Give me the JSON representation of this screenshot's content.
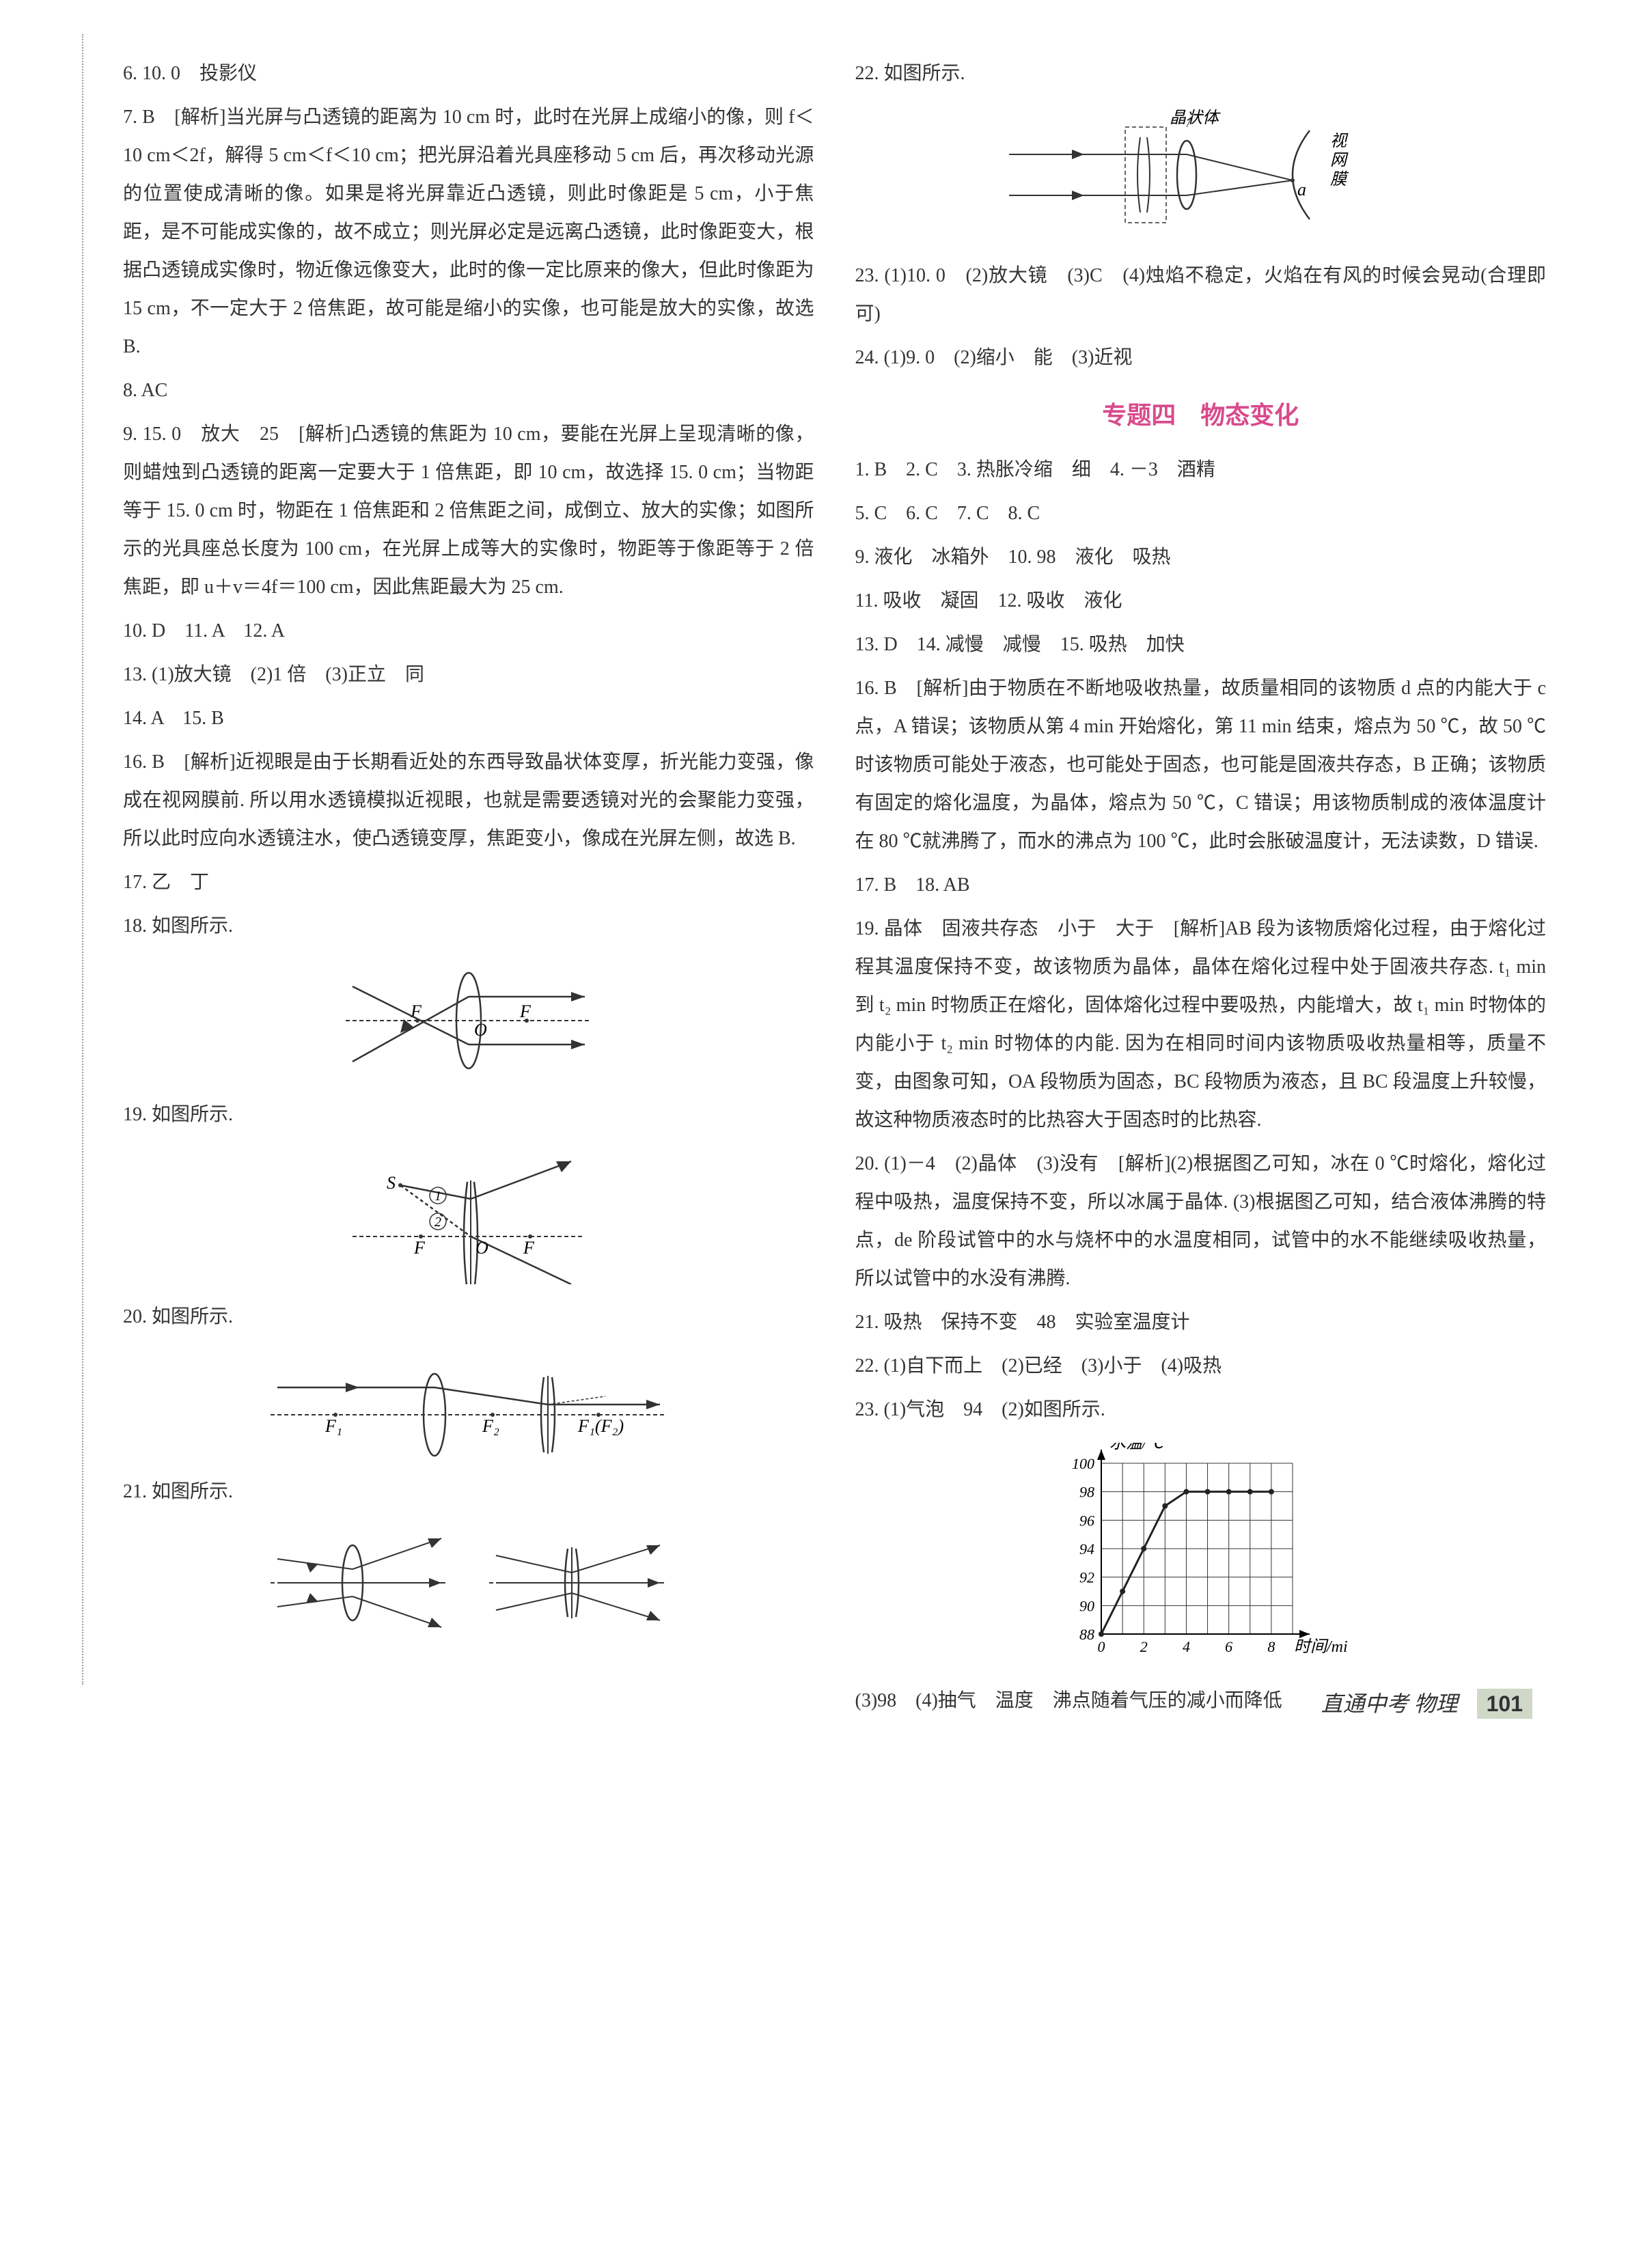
{
  "left": {
    "q06": "6. 10. 0　投影仪",
    "q07": "7. B　[解析]当光屏与凸透镜的距离为 10 cm 时，此时在光屏上成缩小的像，则 f＜10 cm＜2f，解得 5 cm＜f＜10 cm；把光屏沿着光具座移动 5 cm 后，再次移动光源的位置使成清晰的像。如果是将光屏靠近凸透镜，则此时像距是 5 cm，小于焦距，是不可能成实像的，故不成立；则光屏必定是远离凸透镜，此时像距变大，根据凸透镜成实像时，物近像远像变大，此时的像一定比原来的像大，但此时像距为 15 cm，不一定大于 2 倍焦距，故可能是缩小的实像，也可能是放大的实像，故选 B.",
    "q08": "8. AC",
    "q09": "9. 15. 0　放大　25　[解析]凸透镜的焦距为 10 cm，要能在光屏上呈现清晰的像，则蜡烛到凸透镜的距离一定要大于 1 倍焦距，即 10 cm，故选择 15. 0 cm；当物距等于 15. 0 cm 时，物距在 1 倍焦距和 2 倍焦距之间，成倒立、放大的实像；如图所示的光具座总长度为 100 cm，在光屏上成等大的实像时，物距等于像距等于 2 倍焦距，即 u＋v＝4f＝100 cm，因此焦距最大为 25 cm.",
    "q10": "10. D　11. A　12. A",
    "q13": "13. (1)放大镜　(2)1 倍　(3)正立　同",
    "q14": "14. A　15. B",
    "q16": "16. B　[解析]近视眼是由于长期看近处的东西导致晶状体变厚，折光能力变强，像成在视网膜前. 所以用水透镜模拟近视眼，也就是需要透镜对光的会聚能力变强，所以此时应向水透镜注水，使凸透镜变厚，焦距变小，像成在光屏左侧，故选 B.",
    "q17": "17. 乙　丁",
    "q18": "18. 如图所示.",
    "q19": "19. 如图所示.",
    "q20": "20. 如图所示.",
    "q21": "21. 如图所示."
  },
  "right": {
    "q22": "22. 如图所示.",
    "q22_labels": {
      "lens": "晶状体",
      "retina": "视\n网\n膜",
      "point": "a"
    },
    "q23": "23. (1)10. 0　(2)放大镜　(3)C　(4)烛焰不稳定，火焰在有风的时候会晃动(合理即可)",
    "q24": "24. (1)9. 0　(2)缩小　能　(3)近视",
    "section_title": "专题四　物态变化",
    "r01": "1. B　2. C　3. 热胀冷缩　细　4. －3　酒精",
    "r05": "5. C　6. C　7. C　8. C",
    "r09": "9. 液化　冰箱外　10. 98　液化　吸热",
    "r11": "11. 吸收　凝固　12. 吸收　液化",
    "r13": "13. D　14. 减慢　减慢　15. 吸热　加快",
    "r16": "16. B　[解析]由于物质在不断地吸收热量，故质量相同的该物质 d 点的内能大于 c 点，A 错误；该物质从第 4 min 开始熔化，第 11 min 结束，熔点为 50 ℃，故 50 ℃时该物质可能处于液态，也可能处于固态，也可能是固液共存态，B 正确；该物质有固定的熔化温度，为晶体，熔点为 50 ℃，C 错误；用该物质制成的液体温度计在 80 ℃就沸腾了，而水的沸点为 100 ℃，此时会胀破温度计，无法读数，D 错误.",
    "r17": "17. B　18. AB",
    "r19": "19. 晶体　固液共存态　小于　大于　[解析]AB 段为该物质熔化过程，由于熔化过程其温度保持不变，故该物质为晶体，晶体在熔化过程中处于固液共存态. t₁ min 到 t₂ min 时物质正在熔化，固体熔化过程中要吸热，内能增大，故 t₁ min 时物体的内能小于 t₂ min 时物体的内能. 因为在相同时间内该物质吸收热量相等，质量不变，由图象可知，OA 段物质为固态，BC 段物质为液态，且 BC 段温度上升较慢，故这种物质液态时的比热容大于固态时的比热容.",
    "r20": "20. (1)－4　(2)晶体　(3)没有　[解析](2)根据图乙可知，冰在 0 ℃时熔化，熔化过程中吸热，温度保持不变，所以冰属于晶体. (3)根据图乙可知，结合液体沸腾的特点，de 阶段试管中的水与烧杯中的水温度相同，试管中的水不能继续吸收热量，所以试管中的水没有沸腾.",
    "r21": "21. 吸热　保持不变　48　实验室温度计",
    "r22": "22. (1)自下而上　(2)已经　(3)小于　(4)吸热",
    "r23a": "23. (1)气泡　94　(2)如图所示.",
    "r23b": "(3)98　(4)抽气　温度　沸点随着气压的减小而降低"
  },
  "footer": {
    "book": "直通中考",
    "subject": "物理",
    "page": "101"
  },
  "chart": {
    "type": "line",
    "xlabel": "时间/min",
    "ylabel": "水温/℃",
    "ylim": [
      88,
      100
    ],
    "ytick_step": 2,
    "xlim": [
      0,
      9
    ],
    "xticks": [
      0,
      2,
      4,
      6,
      8
    ],
    "grid_color": "#333",
    "line_color": "#222",
    "points": [
      [
        0,
        88
      ],
      [
        1,
        91
      ],
      [
        2,
        94
      ],
      [
        3,
        97
      ],
      [
        4,
        98
      ],
      [
        5,
        98
      ],
      [
        6,
        98
      ],
      [
        7,
        98
      ],
      [
        8,
        98
      ]
    ],
    "axis_color": "#000"
  },
  "diagram18": {
    "labels": [
      "F",
      "O",
      "F"
    ],
    "stroke": "#333"
  },
  "diagram19": {
    "labels": [
      "S",
      "F",
      "O",
      "F",
      "①",
      "②"
    ],
    "stroke": "#333"
  },
  "diagram20": {
    "labels": [
      "F₁",
      "F₂",
      "F₁(F₂)"
    ],
    "stroke": "#333"
  },
  "colors": {
    "accent": "#d94a8c",
    "text": "#333"
  }
}
